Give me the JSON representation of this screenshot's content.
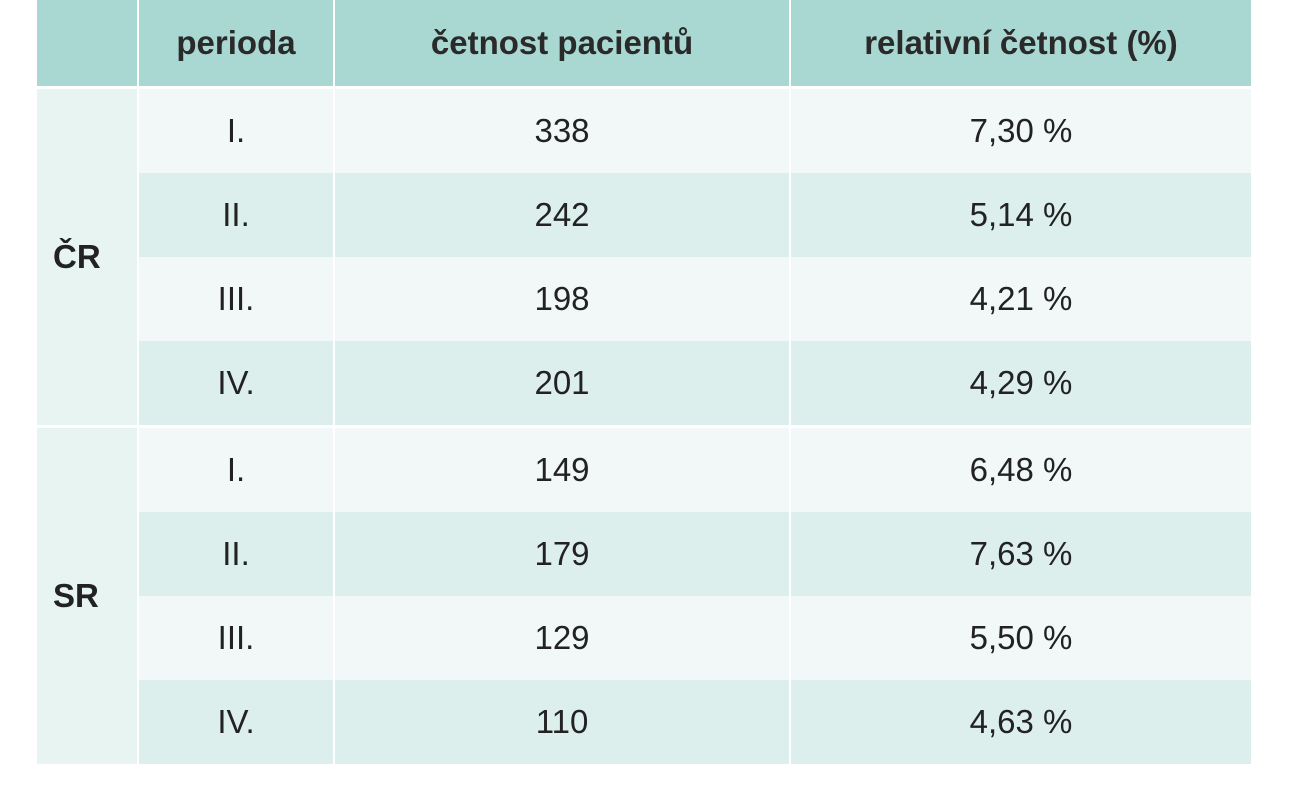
{
  "table": {
    "headers": [
      "",
      "perioda",
      "četnost pacientů",
      "relativní četnost (%)"
    ],
    "groups": [
      {
        "region": "ČR",
        "rows": [
          {
            "period": "I.",
            "count": "338",
            "relative": "7,30 %"
          },
          {
            "period": "II.",
            "count": "242",
            "relative": "5,14 %"
          },
          {
            "period": "III.",
            "count": "198",
            "relative": "4,21 %"
          },
          {
            "period": "IV.",
            "count": "201",
            "relative": "4,29 %"
          }
        ]
      },
      {
        "region": "SR",
        "rows": [
          {
            "period": "I.",
            "count": "149",
            "relative": "6,48 %"
          },
          {
            "period": "II.",
            "count": "179",
            "relative": "7,63 %"
          },
          {
            "period": "III.",
            "count": "129",
            "relative": "5,50 %"
          },
          {
            "period": "IV.",
            "count": "110",
            "relative": "4,63 %"
          }
        ]
      }
    ]
  },
  "colors": {
    "header_bg": "#a9d7d1",
    "row_dark": "#dcefec",
    "row_light": "#f1f8f7",
    "region_bg": "#e8f4f2"
  }
}
